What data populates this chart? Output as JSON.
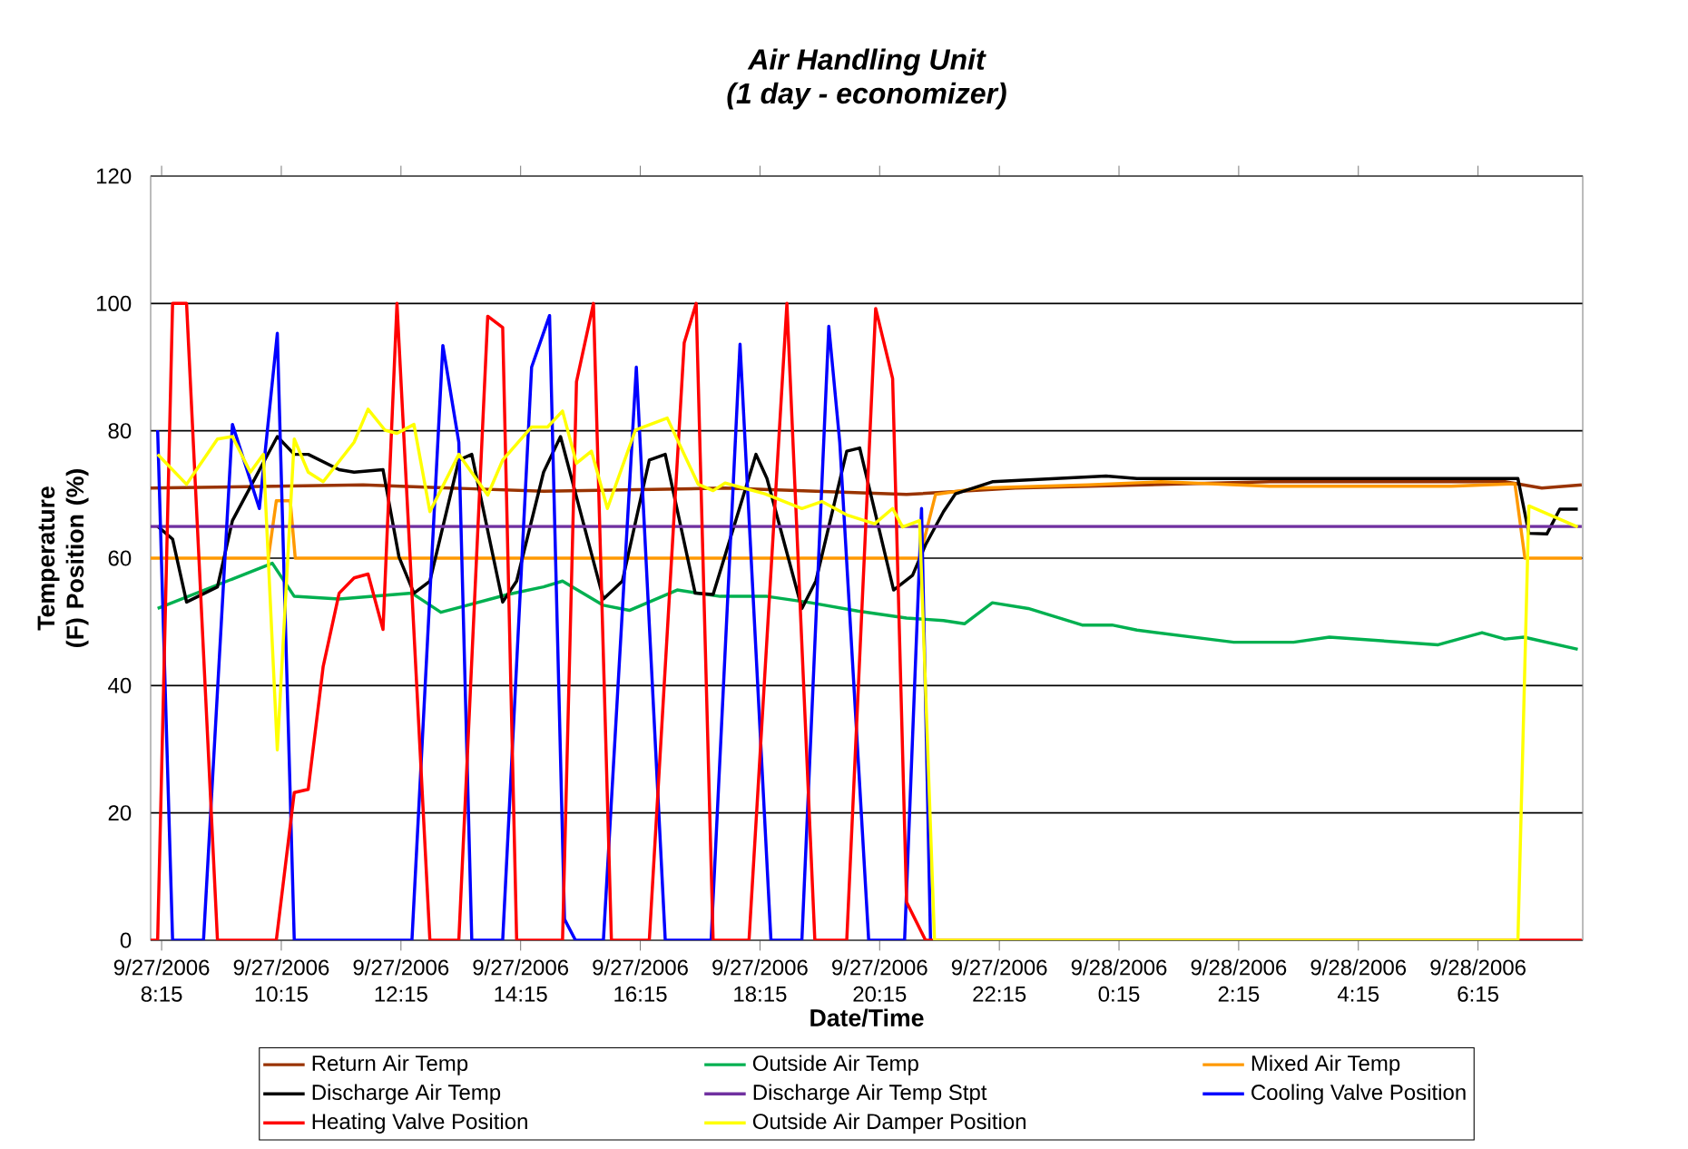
{
  "chart_data": {
    "type": "line",
    "title": "Air Handling Unit",
    "subtitle": "(1 day - economizer)",
    "xlabel": "Date/Time",
    "ylabel": "Temperature (F) Position (%)",
    "xlim": [
      "2006-09-27T08:04",
      "2006-09-28T08:00"
    ],
    "ylim": [
      0,
      120
    ],
    "yticks": [
      0,
      20,
      40,
      60,
      80,
      100,
      120
    ],
    "xticks": [
      {
        "value": "2006-09-27T08:15",
        "label": "9/27/2006 8:15"
      },
      {
        "value": "2006-09-27T10:15",
        "label": "9/27/2006 10:15"
      },
      {
        "value": "2006-09-27T12:15",
        "label": "9/27/2006 12:15"
      },
      {
        "value": "2006-09-27T14:15",
        "label": "9/27/2006 14:15"
      },
      {
        "value": "2006-09-27T16:15",
        "label": "9/27/2006 16:15"
      },
      {
        "value": "2006-09-27T18:15",
        "label": "9/27/2006 18:15"
      },
      {
        "value": "2006-09-27T20:15",
        "label": "9/27/2006 20:15"
      },
      {
        "value": "2006-09-27T22:15",
        "label": "9/27/2006 22:15"
      },
      {
        "value": "2006-09-28T00:15",
        "label": "9/28/2006 0:15"
      },
      {
        "value": "2006-09-28T02:15",
        "label": "9/28/2006 2:15"
      },
      {
        "value": "2006-09-28T04:15",
        "label": "9/28/2006 4:15"
      },
      {
        "value": "2006-09-28T06:15",
        "label": "9/28/2006 6:15"
      }
    ],
    "grid": "y",
    "legend": "bottom",
    "series": [
      {
        "name": "Return Air Temp",
        "color": "#993300",
        "x": [
          "2006-09-27T08:04",
          "2006-09-27T11:37",
          "2006-09-27T14:38",
          "2006-09-27T17:40",
          "2006-09-27T20:42",
          "2006-09-27T22:31",
          "2006-09-28T02:46",
          "2006-09-28T06:42",
          "2006-09-28T07:19",
          "2006-09-28T07:59"
        ],
        "values": [
          71,
          71.5,
          70.5,
          71,
          70,
          71,
          72,
          72,
          71,
          71.5
        ]
      },
      {
        "name": "Outside Air Temp",
        "color": "#00b050",
        "x": [
          "2006-09-27T08:11",
          "2006-09-27T10:06",
          "2006-09-27T10:28",
          "2006-09-27T11:13",
          "2006-09-27T12:26",
          "2006-09-27T12:55",
          "2006-09-27T14:02",
          "2006-09-27T14:38",
          "2006-09-27T14:57",
          "2006-09-27T15:38",
          "2006-09-27T16:04",
          "2006-09-27T16:52",
          "2006-09-27T17:35",
          "2006-09-27T18:22",
          "2006-09-27T19:06",
          "2006-09-27T19:53",
          "2006-09-27T20:42",
          "2006-09-27T21:19",
          "2006-09-27T21:40",
          "2006-09-27T22:08",
          "2006-09-27T22:44",
          "2006-09-27T23:38",
          "2006-09-28T00:08",
          "2006-09-28T00:33",
          "2006-09-28T02:10",
          "2006-09-28T03:10",
          "2006-09-28T03:46",
          "2006-09-28T05:35",
          "2006-09-28T06:19",
          "2006-09-28T06:42",
          "2006-09-28T07:01",
          "2006-09-28T07:55"
        ],
        "values": [
          52.1,
          59.2,
          54,
          53.6,
          54.5,
          51.5,
          54.3,
          55.5,
          56.4,
          52.6,
          51.8,
          55,
          54,
          54,
          53,
          51.7,
          50.6,
          50.2,
          49.7,
          53,
          52.1,
          49.5,
          49.5,
          48.7,
          46.8,
          46.8,
          47.6,
          46.4,
          48.3,
          47.3,
          47.6,
          45.7
        ]
      },
      {
        "name": "Mixed Air Temp",
        "color": "#ff9900",
        "x": [
          "2006-09-27T08:04",
          "2006-09-27T10:02",
          "2006-09-27T10:10",
          "2006-09-27T10:24",
          "2006-09-27T10:29",
          "2006-09-27T20:55",
          "2006-09-27T21:11",
          "2006-09-27T21:55",
          "2006-09-27T23:44",
          "2006-09-28T00:57",
          "2006-09-28T02:46",
          "2006-09-28T05:48",
          "2006-09-28T06:52",
          "2006-09-28T07:02",
          "2006-09-28T07:59"
        ],
        "values": [
          60,
          60,
          69,
          69,
          60,
          60,
          70,
          71,
          71.5,
          72,
          71.3,
          71.3,
          71.7,
          60,
          60
        ]
      },
      {
        "name": "Discharge Air Temp",
        "color": "#000000",
        "x": [
          "2006-09-27T08:11",
          "2006-09-27T08:26",
          "2006-09-27T08:40",
          "2006-09-27T09:11",
          "2006-09-27T09:26",
          "2006-09-27T10:11",
          "2006-09-27T10:28",
          "2006-09-27T10:42",
          "2006-09-27T11:13",
          "2006-09-27T11:28",
          "2006-09-27T11:57",
          "2006-09-27T12:13",
          "2006-09-27T12:28",
          "2006-09-27T12:44",
          "2006-09-27T13:13",
          "2006-09-27T13:26",
          "2006-09-27T13:57",
          "2006-09-27T14:11",
          "2006-09-27T14:38",
          "2006-09-27T14:55",
          "2006-09-27T15:38",
          "2006-09-27T15:57",
          "2006-09-27T16:24",
          "2006-09-27T16:40",
          "2006-09-27T17:10",
          "2006-09-27T17:28",
          "2006-09-27T18:11",
          "2006-09-27T18:22",
          "2006-09-27T18:57",
          "2006-09-27T19:11",
          "2006-09-27T19:42",
          "2006-09-27T19:55",
          "2006-09-27T20:29",
          "2006-09-27T20:48",
          "2006-09-27T21:01",
          "2006-09-27T21:19",
          "2006-09-27T21:31",
          "2006-09-27T22:08",
          "2006-09-28T00:02",
          "2006-09-28T00:33",
          "2006-09-28T06:55",
          "2006-09-28T07:06",
          "2006-09-28T07:24",
          "2006-09-28T07:37",
          "2006-09-28T07:55"
        ],
        "values": [
          65,
          63,
          53.1,
          55.5,
          65.9,
          79.1,
          76.3,
          76.3,
          73.9,
          73.5,
          73.9,
          60.2,
          54.5,
          56.4,
          75.4,
          76.3,
          53.1,
          56.4,
          73.5,
          79.1,
          53.6,
          56.4,
          75.4,
          76.3,
          54.5,
          54.3,
          76.3,
          72.5,
          52.1,
          56.4,
          76.8,
          77.3,
          55,
          57.3,
          62.1,
          67.3,
          70.1,
          72,
          72.9,
          72.5,
          72.5,
          63.9,
          63.8,
          67.7,
          67.7
        ]
      },
      {
        "name": "Discharge Air Temp Stpt",
        "color": "#7030a0",
        "x": [
          "2006-09-27T08:04",
          "2006-09-28T07:59"
        ],
        "values": [
          65,
          65
        ]
      },
      {
        "name": "Cooling Valve Position",
        "color": "#0000ff",
        "x": [
          "2006-09-27T08:11",
          "2006-09-27T08:26",
          "2006-09-27T08:57",
          "2006-09-27T09:26",
          "2006-09-27T09:53",
          "2006-09-27T10:11",
          "2006-09-27T10:28",
          "2006-09-27T12:26",
          "2006-09-27T12:57",
          "2006-09-27T13:13",
          "2006-09-27T13:26",
          "2006-09-27T13:57",
          "2006-09-27T14:26",
          "2006-09-27T14:44",
          "2006-09-27T14:59",
          "2006-09-27T15:10",
          "2006-09-27T15:38",
          "2006-09-27T16:11",
          "2006-09-27T16:40",
          "2006-09-27T17:26",
          "2006-09-27T17:55",
          "2006-09-27T18:26",
          "2006-09-27T18:57",
          "2006-09-27T19:24",
          "2006-09-27T19:35",
          "2006-09-27T20:04",
          "2006-09-27T20:40",
          "2006-09-27T20:57",
          "2006-09-27T21:06"
        ],
        "values": [
          80.1,
          0,
          0,
          81,
          67.8,
          95.3,
          0,
          0,
          93.4,
          78.2,
          0,
          0,
          90,
          98.1,
          3.3,
          0,
          0,
          90,
          0,
          0,
          93.6,
          0,
          0,
          96.4,
          78.2,
          0,
          0,
          67.8,
          0
        ]
      },
      {
        "name": "Heating Valve Position",
        "color": "#ff0000",
        "x": [
          "2006-09-27T08:04",
          "2006-09-27T08:11",
          "2006-09-27T08:26",
          "2006-09-27T08:40",
          "2006-09-27T09:11",
          "2006-09-27T10:10",
          "2006-09-27T10:28",
          "2006-09-27T10:42",
          "2006-09-27T10:57",
          "2006-09-27T11:13",
          "2006-09-27T11:28",
          "2006-09-27T11:42",
          "2006-09-27T11:57",
          "2006-09-27T12:11",
          "2006-09-27T12:44",
          "2006-09-27T13:13",
          "2006-09-27T13:42",
          "2006-09-27T13:57",
          "2006-09-27T14:11",
          "2006-09-27T14:57",
          "2006-09-27T15:11",
          "2006-09-27T15:28",
          "2006-09-27T15:46",
          "2006-09-27T16:24",
          "2006-09-27T16:59",
          "2006-09-27T17:11",
          "2006-09-27T17:28",
          "2006-09-27T18:04",
          "2006-09-27T18:42",
          "2006-09-27T19:10",
          "2006-09-27T19:42",
          "2006-09-27T20:11",
          "2006-09-27T20:28",
          "2006-09-27T20:42",
          "2006-09-27T21:01",
          "2006-09-28T07:59"
        ],
        "values": [
          0,
          0,
          100,
          100,
          0,
          0,
          23.2,
          23.7,
          43,
          54.5,
          56.9,
          57.5,
          48.8,
          100,
          0,
          0,
          98,
          96.2,
          0,
          0,
          87.7,
          100,
          0,
          0,
          93.8,
          100,
          0,
          0,
          100,
          0,
          0,
          99.2,
          88.2,
          6,
          0,
          0
        ]
      },
      {
        "name": "Outside Air Damper Position",
        "color": "#ffff00",
        "x": [
          "2006-09-27T08:11",
          "2006-09-27T08:40",
          "2006-09-27T09:11",
          "2006-09-27T09:26",
          "2006-09-27T09:44",
          "2006-09-27T09:57",
          "2006-09-27T10:11",
          "2006-09-27T10:28",
          "2006-09-27T10:42",
          "2006-09-27T10:57",
          "2006-09-27T11:28",
          "2006-09-27T11:42",
          "2006-09-27T11:59",
          "2006-09-27T12:11",
          "2006-09-27T12:28",
          "2006-09-27T12:44",
          "2006-09-27T13:13",
          "2006-09-27T13:42",
          "2006-09-27T13:57",
          "2006-09-27T14:26",
          "2006-09-27T14:42",
          "2006-09-27T14:57",
          "2006-09-27T15:11",
          "2006-09-27T15:26",
          "2006-09-27T15:42",
          "2006-09-27T16:10",
          "2006-09-27T16:42",
          "2006-09-27T17:13",
          "2006-09-27T17:28",
          "2006-09-27T17:40",
          "2006-09-27T18:20",
          "2006-09-27T18:57",
          "2006-09-27T19:17",
          "2006-09-27T19:42",
          "2006-09-27T20:10",
          "2006-09-27T20:28",
          "2006-09-27T20:38",
          "2006-09-27T20:55",
          "2006-09-27T21:10",
          "2006-09-28T06:55",
          "2006-09-28T07:06",
          "2006-09-28T07:55"
        ],
        "values": [
          76.3,
          71.6,
          78.7,
          79.1,
          73.5,
          76.3,
          29.9,
          78.7,
          73.5,
          72,
          78.2,
          83.4,
          80.1,
          79.6,
          81,
          67.3,
          76.3,
          69.9,
          75.4,
          80.6,
          80.6,
          83.1,
          74.9,
          76.8,
          67.8,
          80.1,
          82,
          71.6,
          70.6,
          71.8,
          70.1,
          67.8,
          68.9,
          66.8,
          65.4,
          67.8,
          64.9,
          65.9,
          0,
          0,
          68.2,
          64.9
        ]
      }
    ]
  }
}
